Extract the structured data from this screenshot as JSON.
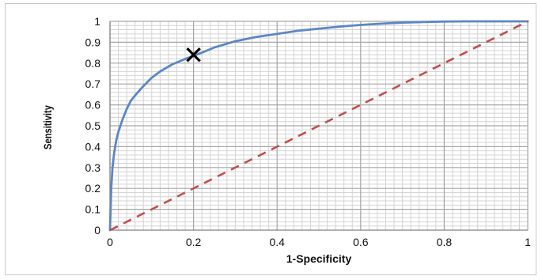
{
  "chart_data": {
    "type": "line",
    "title": "",
    "xlabel": "1-Specificity",
    "ylabel": "Sensitivity",
    "xlim": [
      0,
      1
    ],
    "ylim": [
      0,
      1
    ],
    "x_ticks": [
      "0",
      "0.2",
      "0.4",
      "0.6",
      "0.8",
      "1"
    ],
    "y_ticks": [
      "0",
      "0.1",
      "0.2",
      "0.3",
      "0.4",
      "0.5",
      "0.6",
      "0.7",
      "0.8",
      "0.9",
      "1"
    ],
    "grid": true,
    "legend": "none",
    "colors": {
      "roc_curve": "#5b87c5",
      "reference_line": "#c0504d",
      "marker": "#000000",
      "major_grid": "#a6a6a6",
      "minor_grid": "#d4d4d4"
    },
    "series": [
      {
        "style": "solid",
        "x": [
          0,
          0.003,
          0.006,
          0.01,
          0.015,
          0.02,
          0.03,
          0.04,
          0.05,
          0.06,
          0.08,
          0.1,
          0.12,
          0.15,
          0.18,
          0.2,
          0.22,
          0.25,
          0.3,
          0.35,
          0.4,
          0.45,
          0.5,
          0.55,
          0.6,
          0.65,
          0.7,
          0.75,
          0.8,
          0.85,
          0.9,
          0.95,
          1.0
        ],
        "y": [
          0,
          0.2,
          0.3,
          0.37,
          0.43,
          0.47,
          0.53,
          0.58,
          0.62,
          0.645,
          0.69,
          0.73,
          0.76,
          0.795,
          0.82,
          0.835,
          0.85,
          0.875,
          0.905,
          0.925,
          0.94,
          0.955,
          0.965,
          0.975,
          0.983,
          0.989,
          0.994,
          0.997,
          0.999,
          1.0,
          1.0,
          1.0,
          1.0
        ]
      },
      {
        "style": "dashed",
        "x": [
          0,
          1
        ],
        "y": [
          0,
          1
        ]
      }
    ],
    "markers": [
      {
        "symbol": "x",
        "x": 0.2,
        "y": 0.84
      }
    ]
  }
}
